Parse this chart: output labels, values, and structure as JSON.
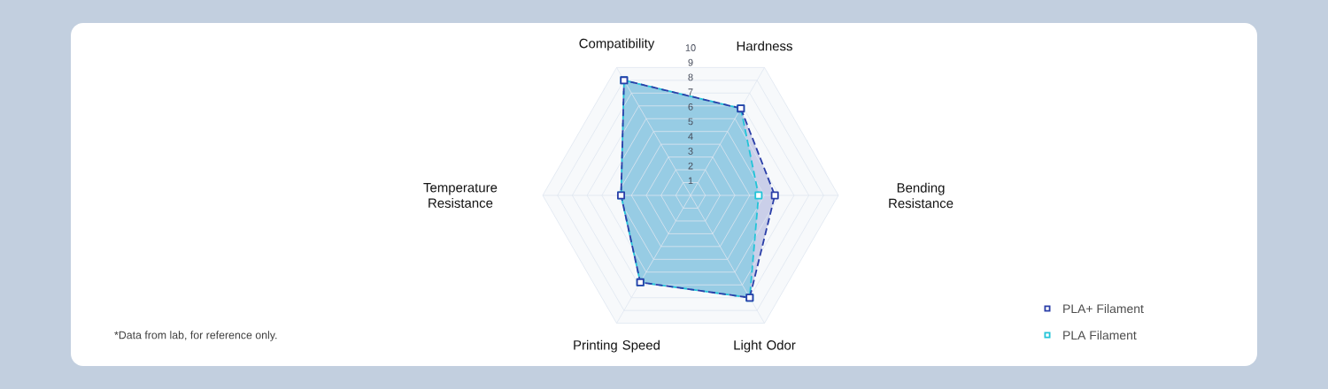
{
  "chart_data": {
    "type": "radar",
    "categories": [
      "Hardness",
      "Bending Resistance",
      "Light Odor",
      "Printing Speed",
      "Temperature Resistance",
      "Compatibility"
    ],
    "series": [
      {
        "name": "PLA+ Filament",
        "color": "#2a3ea8",
        "values": [
          6.8,
          5.7,
          8,
          6.8,
          4.7,
          9
        ]
      },
      {
        "name": "PLA Filament",
        "color": "#22c4d8",
        "values": [
          6.8,
          4.6,
          8,
          6.8,
          4.7,
          9
        ]
      }
    ],
    "ylim": [
      0,
      10
    ],
    "yticks": [
      1,
      2,
      3,
      4,
      5,
      6,
      7,
      8,
      9,
      10
    ],
    "grid": true,
    "legend": "bottom right",
    "marker": "square",
    "line_style": "dashed",
    "annotations": [
      "*Data from lab, for reference only."
    ]
  }
}
